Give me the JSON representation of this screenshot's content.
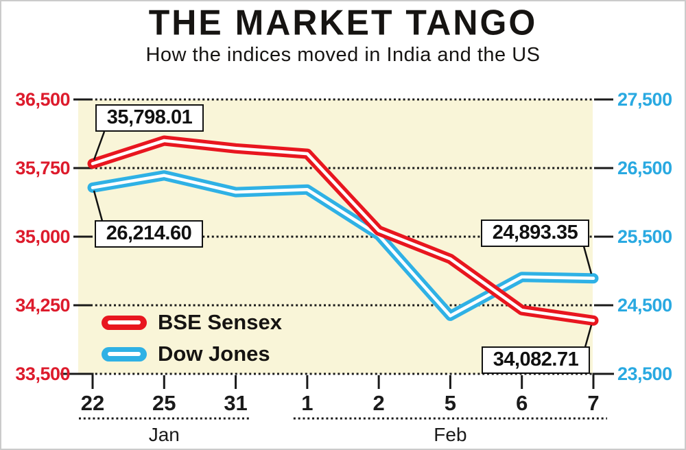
{
  "header": {
    "title": "THE MARKET TANGO",
    "subtitle": "How the indices moved in India and the US"
  },
  "chart_data": {
    "type": "line",
    "categories": [
      "22",
      "25",
      "31",
      "1",
      "2",
      "5",
      "6",
      "7"
    ],
    "month_groups": [
      {
        "label": "Jan",
        "from_index": 0,
        "to_index": 2
      },
      {
        "label": "Feb",
        "from_index": 3,
        "to_index": 7
      }
    ],
    "series": [
      {
        "name": "BSE Sensex",
        "axis": "left",
        "color": "#e8161f",
        "values": [
          35798.01,
          36050,
          35965,
          35907,
          35067,
          34757,
          34196,
          34082.71
        ]
      },
      {
        "name": "Dow Jones",
        "axis": "right",
        "color": "#2fb1e5",
        "values": [
          26214.6,
          26393,
          26149,
          26187,
          25521,
          24346,
          24913,
          24893.35
        ]
      }
    ],
    "left_axis": {
      "tick_labels": [
        "36,500",
        "35,750",
        "35,000",
        "34,250",
        "33,500"
      ],
      "min": 33500,
      "max": 36500,
      "color": "#dd1b2c"
    },
    "right_axis": {
      "tick_labels": [
        "27,500",
        "26,500",
        "25,500",
        "24,500",
        "23,500"
      ],
      "min": 23500,
      "max": 27500,
      "color": "#29a9e1"
    },
    "annotations": [
      {
        "id": "sensex-start",
        "label": "35,798.01",
        "series": 0,
        "point": 0
      },
      {
        "id": "dow-start",
        "label": "26,214.60",
        "series": 1,
        "point": 0
      },
      {
        "id": "dow-end",
        "label": "24,893.35",
        "series": 1,
        "point": 7
      },
      {
        "id": "sensex-end",
        "label": "34,082.71",
        "series": 0,
        "point": 7
      }
    ],
    "legend": [
      "BSE Sensex",
      "Dow Jones"
    ],
    "plot_background": "#f9f5d8",
    "gridline_color": "#1a1a1a",
    "grid": "dotted-horizontal"
  }
}
